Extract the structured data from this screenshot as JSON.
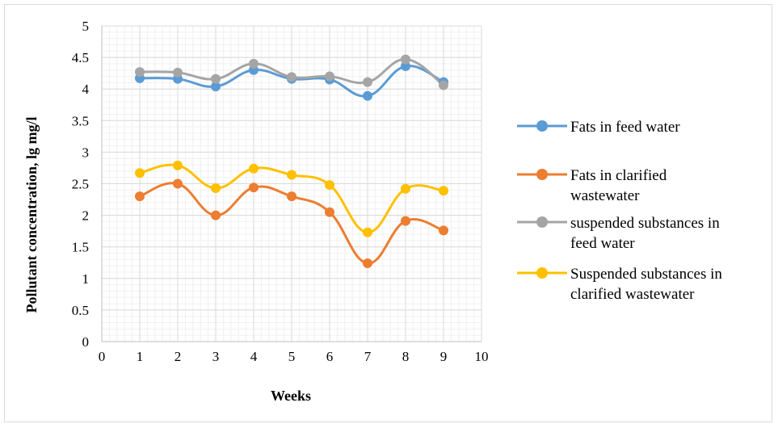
{
  "chart_data": {
    "type": "line",
    "title": "",
    "xlabel": "Weeks",
    "ylabel": "Pollutant concentration, lg mg/l",
    "xlim": [
      0,
      10
    ],
    "ylim": [
      0,
      5
    ],
    "x_ticks": [
      0,
      1,
      2,
      3,
      4,
      5,
      6,
      7,
      8,
      9,
      10
    ],
    "y_ticks": [
      0,
      0.5,
      1,
      1.5,
      2,
      2.5,
      3,
      3.5,
      4,
      4.5,
      5
    ],
    "x_tick_labels": [
      "0",
      "1",
      "2",
      "3",
      "4",
      "5",
      "6",
      "7",
      "8",
      "9",
      "10"
    ],
    "y_tick_labels": [
      "0",
      "0.5",
      "1",
      "1.5",
      "2",
      "2.5",
      "3",
      "3.5",
      "4",
      "4.5",
      "5"
    ],
    "grid": true,
    "minor_grid": true,
    "smooth": true,
    "legend_position": "right",
    "x": [
      1,
      2,
      3,
      4,
      5,
      6,
      7,
      8,
      9
    ],
    "series": [
      {
        "name": "Fats in feed water",
        "name_lines": [
          "Fats in feed water"
        ],
        "color": "#5B9BD5",
        "values": [
          4.17,
          4.16,
          4.04,
          4.3,
          4.16,
          4.15,
          3.89,
          4.36,
          4.11
        ]
      },
      {
        "name": "Fats in clarified wastewater",
        "name_lines": [
          "Fats in clarified",
          "wastewater"
        ],
        "color": "#ED7D31",
        "values": [
          2.3,
          2.5,
          2.0,
          2.44,
          2.3,
          2.05,
          1.24,
          1.91,
          1.76
        ]
      },
      {
        "name": "suspended substances in feed water",
        "name_lines": [
          "suspended substances in",
          "feed water"
        ],
        "color": "#A5A5A5",
        "values": [
          4.27,
          4.26,
          4.16,
          4.4,
          4.19,
          4.2,
          4.11,
          4.47,
          4.06
        ]
      },
      {
        "name": "Suspended substances in clarified wastewater",
        "name_lines": [
          "Suspended substances in",
          "clarified wastewater"
        ],
        "color": "#FFC000",
        "values": [
          2.67,
          2.79,
          2.43,
          2.74,
          2.64,
          2.48,
          1.73,
          2.42,
          2.39
        ]
      }
    ]
  }
}
